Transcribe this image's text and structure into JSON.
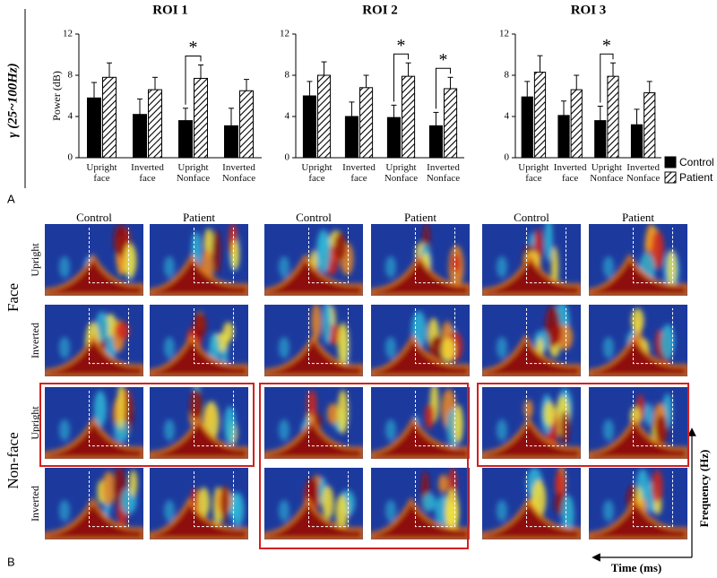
{
  "figure": {
    "panel_a_label": "A",
    "panel_b_label": "B",
    "band_label": "γ (25~100Hz)"
  },
  "legend": [
    {
      "label": "Control",
      "color": "#000000",
      "pattern": "solid"
    },
    {
      "label": "Patient",
      "color": "#000000",
      "pattern": "hatch"
    }
  ],
  "chart_data": [
    {
      "type": "bar",
      "title": "ROI 1",
      "y_label": "Power (dB)",
      "categories": [
        "Upright face",
        "Inverted face",
        "Upright Nonface",
        "Inverted Nonface"
      ],
      "ylim": [
        0,
        12
      ],
      "yticks": [
        0,
        4,
        8,
        12
      ],
      "series": [
        {
          "color": "#000000",
          "pattern": "solid",
          "values": [
            5.8,
            4.2,
            3.6,
            3.1
          ],
          "errors": [
            1.5,
            1.5,
            1.2,
            1.7
          ]
        },
        {
          "color": "#000000",
          "pattern": "hatch",
          "values": [
            7.8,
            6.6,
            7.7,
            6.5
          ],
          "errors": [
            1.4,
            1.2,
            1.3,
            1.1
          ]
        }
      ],
      "annotations": [
        {
          "text": "*",
          "category": 2
        }
      ]
    },
    {
      "type": "bar",
      "title": "ROI 2",
      "categories": [
        "Upright face",
        "Inverted face",
        "Upright Nonface",
        "Inverted Nonface"
      ],
      "ylim": [
        0,
        12
      ],
      "yticks": [
        0,
        4,
        8,
        12
      ],
      "series": [
        {
          "color": "#000000",
          "pattern": "solid",
          "values": [
            6.0,
            4.0,
            3.9,
            3.1
          ],
          "errors": [
            1.4,
            1.4,
            1.2,
            1.3
          ]
        },
        {
          "color": "#000000",
          "pattern": "hatch",
          "values": [
            8.0,
            6.8,
            7.9,
            6.7
          ],
          "errors": [
            1.3,
            1.2,
            1.3,
            1.1
          ]
        }
      ],
      "annotations": [
        {
          "text": "*",
          "category": 2
        },
        {
          "text": "*",
          "category": 3
        }
      ]
    },
    {
      "type": "bar",
      "title": "ROI 3",
      "categories": [
        "Upright face",
        "Inverted face",
        "Upright Nonface",
        "Inverted Nonface"
      ],
      "ylim": [
        0,
        12
      ],
      "yticks": [
        0,
        4,
        8,
        12
      ],
      "series": [
        {
          "color": "#000000",
          "pattern": "solid",
          "values": [
            5.9,
            4.1,
            3.6,
            3.2
          ],
          "errors": [
            1.5,
            1.4,
            1.4,
            1.5
          ]
        },
        {
          "color": "#000000",
          "pattern": "hatch",
          "values": [
            8.3,
            6.6,
            7.9,
            6.3
          ],
          "errors": [
            1.6,
            1.4,
            1.3,
            1.1
          ]
        }
      ],
      "annotations": [
        {
          "text": "*",
          "category": 2
        }
      ]
    }
  ],
  "panel_b": {
    "columns": [
      "Control",
      "Patient",
      "Control",
      "Patient",
      "Control",
      "Patient"
    ],
    "groups": [
      {
        "label": "Face",
        "rows": [
          "Upright",
          "Inverted"
        ]
      },
      {
        "label": "Non-face",
        "rows": [
          "Upright",
          "Inverted"
        ]
      }
    ],
    "y_axis_label": "Frequency (Hz)",
    "x_axis_label": "Time (ms)"
  }
}
